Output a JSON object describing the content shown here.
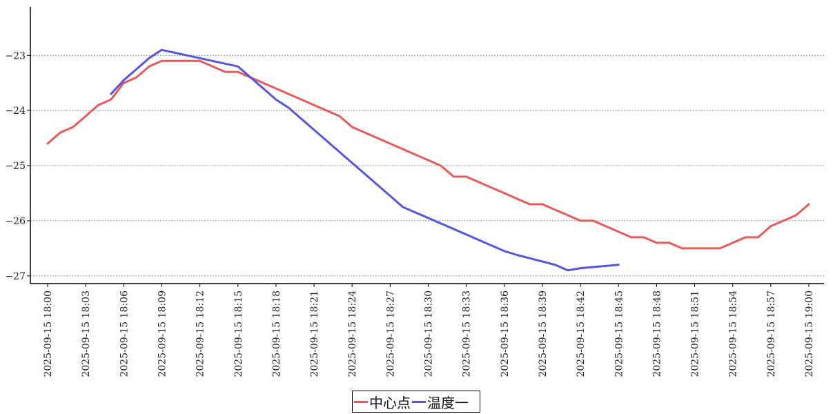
{
  "chart_data": {
    "type": "line",
    "x": [
      "18:00",
      "18:01",
      "18:02",
      "18:03",
      "18:04",
      "18:05",
      "18:06",
      "18:07",
      "18:08",
      "18:09",
      "18:10",
      "18:11",
      "18:12",
      "18:13",
      "18:14",
      "18:15",
      "18:16",
      "18:17",
      "18:18",
      "18:19",
      "18:20",
      "18:21",
      "18:22",
      "18:23",
      "18:24",
      "18:25",
      "18:26",
      "18:27",
      "18:28",
      "18:29",
      "18:30",
      "18:31",
      "18:32",
      "18:33",
      "18:34",
      "18:35",
      "18:36",
      "18:37",
      "18:38",
      "18:39",
      "18:40",
      "18:41",
      "18:42",
      "18:43",
      "18:44",
      "18:45",
      "18:46",
      "18:47",
      "18:48",
      "18:49",
      "18:50",
      "18:51",
      "18:52",
      "18:53",
      "18:54",
      "18:55",
      "18:56",
      "18:57",
      "18:58",
      "18:59",
      "19:00"
    ],
    "x_ticks": [
      "2025-09-15 18:00",
      "2025-09-15 18:03",
      "2025-09-15 18:06",
      "2025-09-15 18:09",
      "2025-09-15 18:12",
      "2025-09-15 18:15",
      "2025-09-15 18:18",
      "2025-09-15 18:21",
      "2025-09-15 18:24",
      "2025-09-15 18:27",
      "2025-09-15 18:30",
      "2025-09-15 18:33",
      "2025-09-15 18:36",
      "2025-09-15 18:39",
      "2025-09-15 18:42",
      "2025-09-15 18:45",
      "2025-09-15 18:48",
      "2025-09-15 18:51",
      "2025-09-15 18:54",
      "2025-09-15 18:57",
      "2025-09-15 19:00"
    ],
    "y_ticks": [
      -23,
      -24,
      -25,
      -26,
      -27
    ],
    "y_tick_labels": [
      "−23",
      "−24",
      "−25",
      "−26",
      "−27"
    ],
    "ylim": [
      -27.14,
      -22.12
    ],
    "xlim": [
      "18:00",
      "19:00"
    ],
    "grid": "horizontal-dotted",
    "legend_position": "bottom-center",
    "series": [
      {
        "name": "中心点",
        "color": "#e85a5a",
        "values": [
          -24.6,
          -24.4,
          -24.3,
          -24.1,
          -23.9,
          -23.8,
          -23.5,
          -23.4,
          -23.2,
          -23.1,
          -23.1,
          -23.1,
          -23.1,
          -23.2,
          -23.3,
          -23.3,
          -23.4,
          -23.5,
          -23.6,
          -23.7,
          -23.8,
          -23.9,
          -24.0,
          -24.1,
          -24.3,
          -24.4,
          -24.5,
          -24.6,
          -24.7,
          -24.8,
          -24.9,
          -25.0,
          -25.2,
          -25.2,
          -25.3,
          -25.4,
          -25.5,
          -25.6,
          -25.7,
          -25.7,
          -25.8,
          -25.9,
          -26.0,
          -26.0,
          -26.1,
          -26.2,
          -26.3,
          -26.3,
          -26.4,
          -26.4,
          -26.5,
          -26.5,
          -26.5,
          -26.5,
          -26.4,
          -26.3,
          -26.3,
          -26.1,
          -26.0,
          -25.9,
          -25.7
        ]
      },
      {
        "name": "温度一",
        "color": "#5555e0",
        "values": [
          null,
          null,
          null,
          null,
          null,
          -23.7,
          -23.45,
          -23.25,
          -23.05,
          -22.9,
          -22.95,
          -23.0,
          -23.05,
          -23.1,
          -23.15,
          -23.2,
          -23.4,
          -23.6,
          -23.8,
          -23.95,
          -24.15,
          -24.35,
          -24.55,
          -24.75,
          -24.95,
          -25.15,
          -25.35,
          -25.55,
          -25.75,
          -25.85,
          -25.95,
          -26.05,
          -26.15,
          -26.25,
          -26.35,
          -26.45,
          -26.55,
          -26.62,
          -26.68,
          -26.74,
          -26.8,
          -26.9,
          -26.86,
          -26.84,
          -26.82,
          -26.8,
          null,
          null,
          null,
          null,
          null,
          null,
          null,
          null,
          null,
          null,
          null,
          null,
          null,
          null,
          null
        ]
      }
    ]
  }
}
